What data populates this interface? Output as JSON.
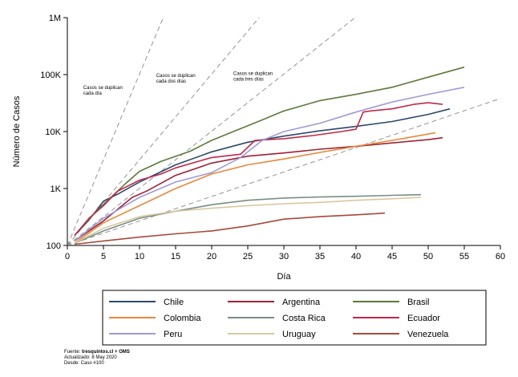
{
  "chart_data": {
    "type": "line",
    "xlabel": "Día",
    "ylabel": "Número de Casos",
    "xlim": [
      0,
      60
    ],
    "x_ticks": [
      0,
      5,
      10,
      15,
      20,
      25,
      30,
      35,
      40,
      45,
      50,
      55,
      60
    ],
    "ylim": [
      100,
      1000000
    ],
    "y_scale": "log",
    "y_ticks": [
      {
        "value": 100,
        "label": "100"
      },
      {
        "value": 1000,
        "label": "1K"
      },
      {
        "value": 10000,
        "label": "10K"
      },
      {
        "value": 100000,
        "label": "100K"
      },
      {
        "value": 1000000,
        "label": "1M"
      }
    ],
    "grid": false,
    "legend_position": "bottom",
    "reference_lines": [
      {
        "label_lines": [
          "Casos se duplican",
          "cada día"
        ],
        "doubling_days": 1
      },
      {
        "label_lines": [
          "Casos se duplican",
          "cada dos días"
        ],
        "doubling_days": 2
      },
      {
        "label_lines": [
          "Casos se duplican",
          "cada tres días"
        ],
        "doubling_days": 3
      },
      {
        "doubling_days": 7
      }
    ],
    "series": [
      {
        "name": "Chile",
        "color": "#2b4a6b",
        "x": [
          1,
          3,
          5,
          7,
          10,
          15,
          20,
          25,
          30,
          35,
          40,
          45,
          50,
          53
        ],
        "y": [
          150,
          280,
          600,
          800,
          1300,
          2600,
          4400,
          6500,
          8300,
          10300,
          12300,
          15000,
          20000,
          25000
        ]
      },
      {
        "name": "Argentina",
        "color": "#9b2335",
        "x": [
          1,
          5,
          9,
          11,
          15,
          20,
          25,
          30,
          35,
          40,
          45,
          50,
          52
        ],
        "y": [
          120,
          270,
          700,
          900,
          1700,
          2800,
          3700,
          4200,
          4900,
          5500,
          6300,
          7200,
          7800
        ]
      },
      {
        "name": "Brasil",
        "color": "#5b7a3a",
        "x": [
          1,
          4,
          8,
          10,
          13,
          17,
          20,
          23,
          27,
          30,
          35,
          40,
          45,
          50,
          55
        ],
        "y": [
          150,
          400,
          1200,
          2000,
          3000,
          4500,
          7000,
          10000,
          16000,
          23000,
          35000,
          45000,
          60000,
          90000,
          135000
        ]
      },
      {
        "name": "Colombia",
        "color": "#e8873a",
        "x": [
          1,
          5,
          10,
          15,
          20,
          25,
          30,
          35,
          40,
          45,
          51
        ],
        "y": [
          110,
          250,
          500,
          1000,
          1800,
          2600,
          3300,
          4300,
          5500,
          7000,
          9500
        ]
      },
      {
        "name": "Costa Rica",
        "color": "#7a8e84",
        "x": [
          1,
          5,
          10,
          15,
          20,
          25,
          30,
          35,
          40,
          45,
          49
        ],
        "y": [
          110,
          180,
          300,
          400,
          520,
          620,
          680,
          710,
          730,
          760,
          780
        ]
      },
      {
        "name": "Ecuador",
        "color": "#c0284a",
        "x": [
          1,
          3,
          5,
          7,
          10,
          13,
          15,
          20,
          24,
          26,
          30,
          34,
          38,
          40,
          41,
          42,
          45,
          48,
          50,
          52
        ],
        "y": [
          150,
          300,
          500,
          900,
          1400,
          1800,
          2300,
          3500,
          4000,
          7000,
          7500,
          8500,
          10000,
          11000,
          22000,
          23000,
          25000,
          30000,
          32000,
          30000
        ]
      },
      {
        "name": "Peru",
        "color": "#a09ad6",
        "x": [
          1,
          5,
          10,
          15,
          20,
          24,
          27,
          30,
          35,
          40,
          45,
          50,
          55
        ],
        "y": [
          120,
          300,
          700,
          1300,
          1900,
          3500,
          7000,
          10000,
          14000,
          22000,
          33000,
          45000,
          60000
        ]
      },
      {
        "name": "Uruguay",
        "color": "#d9c79e",
        "x": [
          1,
          5,
          10,
          15,
          20,
          25,
          30,
          35,
          40,
          45,
          49
        ],
        "y": [
          110,
          200,
          320,
          400,
          450,
          500,
          540,
          570,
          620,
          660,
          700
        ]
      },
      {
        "name": "Venezuela",
        "color": "#a54a3a",
        "x": [
          1,
          5,
          10,
          15,
          20,
          25,
          30,
          35,
          40,
          44
        ],
        "y": [
          105,
          120,
          140,
          160,
          180,
          220,
          290,
          320,
          345,
          370
        ]
      }
    ]
  },
  "footer": {
    "source_label": "Fuente: ",
    "source_value": "tresquintos.cl + OMS",
    "updated": "Actualizado: 8 May 2020",
    "since": "Desde: Caso #100"
  }
}
